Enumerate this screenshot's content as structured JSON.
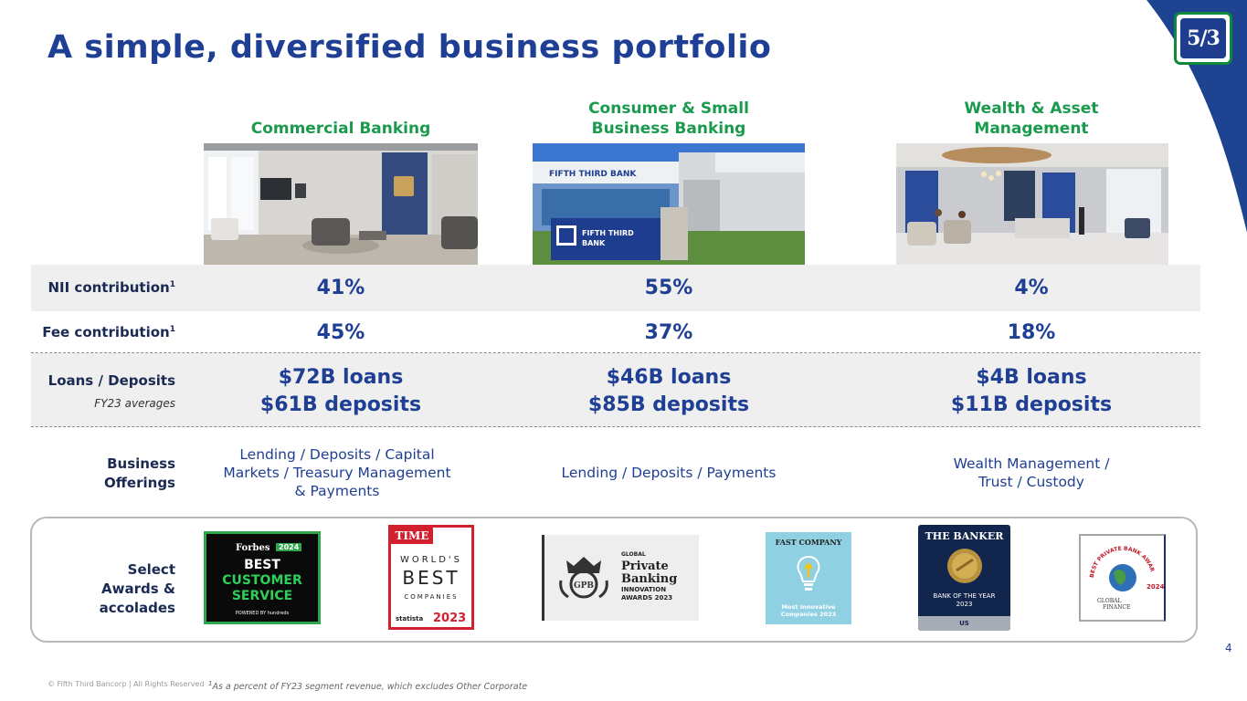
{
  "slide": {
    "title": "A simple, diversified business portfolio",
    "logo_text": "5/3",
    "page_number": "4",
    "copyright": "© Fifth Third Bancorp | All Rights Reserved",
    "footnote_mark": "1",
    "footnote": "As a percent of FY23 segment revenue, which excludes Other Corporate"
  },
  "columns": [
    {
      "name_line1": "Commercial Banking",
      "name_line2": "",
      "nii": "41%",
      "fee": "45%",
      "loans": "$72B loans",
      "deposits": "$61B deposits",
      "offer_line1": "Lending / Deposits / Capital",
      "offer_line2": "Markets / Treasury Management",
      "offer_line3": "& Payments"
    },
    {
      "name_line1": "Consumer & Small",
      "name_line2": "Business Banking",
      "nii": "55%",
      "fee": "37%",
      "loans": "$46B loans",
      "deposits": "$85B deposits",
      "offer_line1": "Lending / Deposits / Payments",
      "offer_line2": "",
      "offer_line3": ""
    },
    {
      "name_line1": "Wealth & Asset",
      "name_line2": "Management",
      "nii": "4%",
      "fee": "18%",
      "loans": "$4B loans",
      "deposits": "$11B deposits",
      "offer_line1": "Wealth Management /",
      "offer_line2": "Trust / Custody",
      "offer_line3": ""
    }
  ],
  "rows": {
    "nii_label": "NII contribution",
    "fee_label": "Fee contribution",
    "sup": "1",
    "loans_label": "Loans / Deposits",
    "loans_sub": "FY23 averages",
    "offer_label_1": "Business",
    "offer_label_2": "Offerings",
    "awards_label_1": "Select",
    "awards_label_2": "Awards &",
    "awards_label_3": "accolades"
  },
  "photos": {
    "bank_sign": "FIFTH THIRD BANK",
    "monument_line1": "FIFTH THIRD",
    "monument_line2": "BANK"
  },
  "awards": {
    "forbes_brand": "Forbes",
    "forbes_year": "2024",
    "forbes_line1": "BEST",
    "forbes_line2": "CUSTOMER",
    "forbes_line3": "SERVICE",
    "forbes_powered": "POWERED BY hundreds",
    "time_brand": "TIME",
    "time_line1": "WORLD'S",
    "time_line2": "BEST",
    "time_line3": "COMPANIES",
    "time_statista": "statista",
    "time_year": "2023",
    "gpb_emblem": "GPB",
    "gpb_line1": "GLOBAL",
    "gpb_line2": "Private",
    "gpb_line3": "Banking",
    "gpb_line4": "INNOVATION",
    "gpb_line5": "AWARDS 2023",
    "fc_brand": "FAST COMPANY",
    "fc_line1": "Most Innovative",
    "fc_line2": "Companies 2023",
    "banker_brand": "THE BANKER",
    "banker_line1": "BANK OF THE YEAR",
    "banker_line2": "2023",
    "banker_region": "US",
    "gf_arc": "BEST PRIVATE BANK AWARD",
    "gf_year": "2024",
    "gf_brand_1": "GLOBAL",
    "gf_brand_2": "FINANCE"
  },
  "colors": {
    "navy": "#1f3f94",
    "green": "#1a9a4c",
    "corner_blue": "#1e4391",
    "band_grey": "#efefef"
  }
}
